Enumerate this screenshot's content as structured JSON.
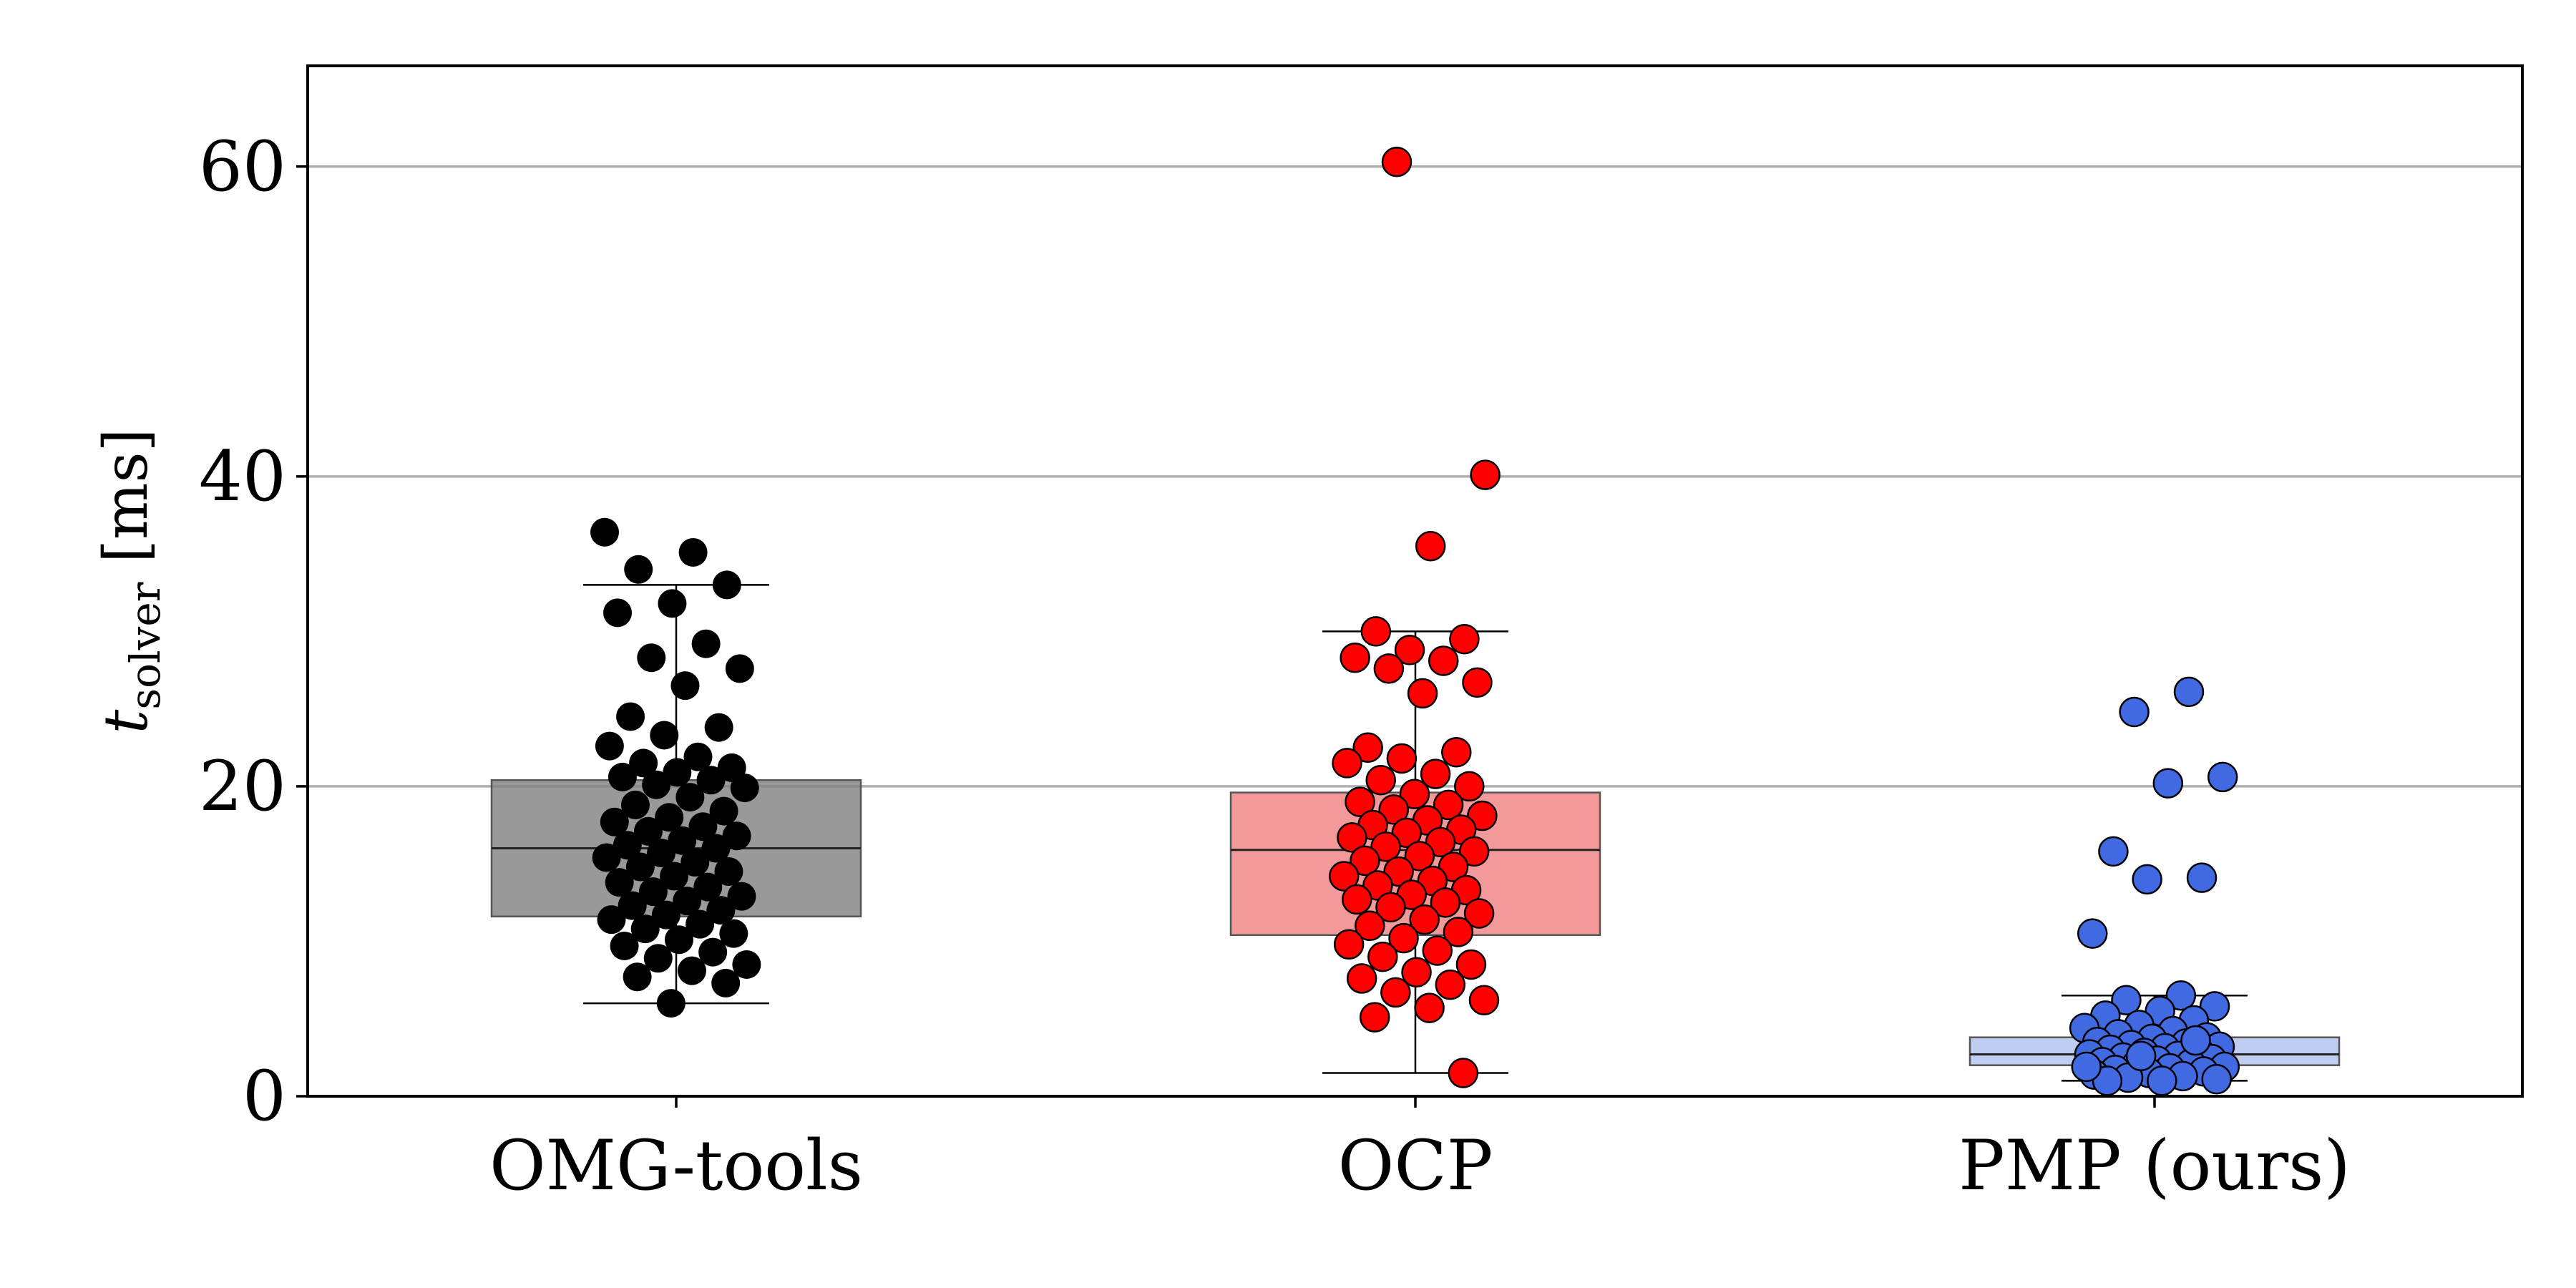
{
  "chart_data": {
    "type": "box-strip",
    "title": "",
    "xlabel": "",
    "ylabel": {
      "base": "t",
      "subscript": "solver",
      "unit": " [ms]"
    },
    "ylim": [
      0,
      66.5
    ],
    "yticks": [
      0,
      20,
      40,
      60
    ],
    "grid": "horizontal at major y ticks",
    "categories": [
      "OMG-tools",
      "OCP",
      "PMP (ours)"
    ],
    "series": [
      {
        "category": "OMG-tools",
        "box_color": "#808080",
        "point_color": "#000000",
        "box": {
          "whisker_low": 6.0,
          "q1": 11.6,
          "median": 16.0,
          "q3": 20.4,
          "whisker_high": 33.0
        },
        "points": [
          36.4,
          35.1,
          34.0,
          33.0,
          31.8,
          31.2,
          29.2,
          28.3,
          27.6,
          26.5,
          24.5,
          23.8,
          23.3,
          22.6,
          21.9,
          21.5,
          21.2,
          20.9,
          20.6,
          20.4,
          20.1,
          19.9,
          19.3,
          18.8,
          18.4,
          18.0,
          17.7,
          17.4,
          17.1,
          16.8,
          16.5,
          16.2,
          16.0,
          15.7,
          15.4,
          15.1,
          14.8,
          14.5,
          14.2,
          13.8,
          13.5,
          13.2,
          12.9,
          12.6,
          12.3,
          12.0,
          11.7,
          11.4,
          11.1,
          10.8,
          10.5,
          10.1,
          9.7,
          9.3,
          8.9,
          8.5,
          8.1,
          7.7,
          7.3,
          6.0
        ]
      },
      {
        "category": "OCP",
        "box_color": "#f08080",
        "point_color": "#ff0000",
        "box": {
          "whisker_low": 1.5,
          "q1": 10.4,
          "median": 15.9,
          "q3": 19.6,
          "whisker_high": 30.0
        },
        "points": [
          60.3,
          40.1,
          35.5,
          30.0,
          29.5,
          28.8,
          28.3,
          28.1,
          27.6,
          26.7,
          26.0,
          22.5,
          22.2,
          21.8,
          21.5,
          20.8,
          20.4,
          20.0,
          19.5,
          19.0,
          18.8,
          18.5,
          18.1,
          17.8,
          17.5,
          17.2,
          17.0,
          16.7,
          16.4,
          16.1,
          15.8,
          15.5,
          15.2,
          14.8,
          14.5,
          14.2,
          13.9,
          13.6,
          13.3,
          13.0,
          12.7,
          12.5,
          12.2,
          11.8,
          11.4,
          11.0,
          10.6,
          10.2,
          9.8,
          9.4,
          9.0,
          8.5,
          8.0,
          7.6,
          7.2,
          6.7,
          6.2,
          5.7,
          5.1,
          1.5
        ]
      },
      {
        "category": "PMP (ours)",
        "box_color": "#aec0ec",
        "point_color": "#4169e1",
        "box": {
          "whisker_low": 1.0,
          "q1": 2.0,
          "median": 2.7,
          "q3": 3.8,
          "whisker_high": 6.5
        },
        "points": [
          26.1,
          24.8,
          20.6,
          20.2,
          15.8,
          14.1,
          14.0,
          10.5,
          6.5,
          6.2,
          5.8,
          5.5,
          5.2,
          4.9,
          4.6,
          4.4,
          4.2,
          4.0,
          3.8,
          3.7,
          3.5,
          3.4,
          3.3,
          3.2,
          3.1,
          3.0,
          2.9,
          2.8,
          2.7,
          2.6,
          2.5,
          2.4,
          2.3,
          2.2,
          2.1,
          2.0,
          1.9,
          1.8,
          1.7,
          1.6,
          1.5,
          1.4,
          1.3,
          1.2,
          1.1,
          1.0,
          1.0,
          3.6,
          2.6,
          1.9
        ]
      }
    ]
  }
}
